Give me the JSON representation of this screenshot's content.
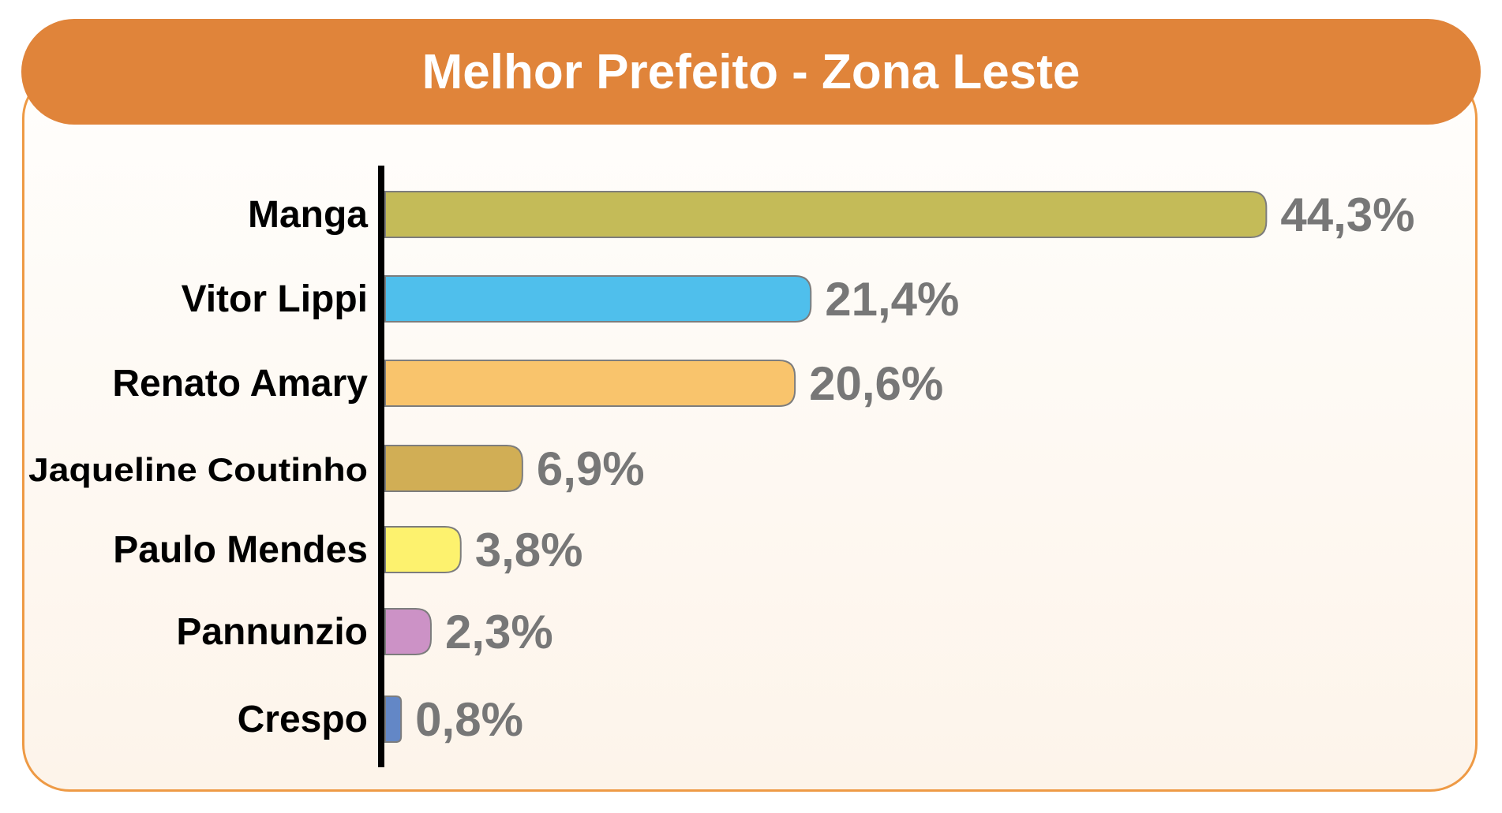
{
  "chart_data": {
    "type": "bar",
    "orientation": "horizontal",
    "title": "Melhor Prefeito - Zona Leste",
    "categories": [
      "Manga",
      "Vitor Lippi",
      "Renato Amary",
      "Jaqueline Coutinho",
      "Paulo Mendes",
      "Pannunzio",
      "Crespo"
    ],
    "values": [
      44.3,
      21.4,
      20.6,
      6.9,
      3.8,
      2.3,
      0.8
    ],
    "value_labels": [
      "44,3%",
      "21,4%",
      "20,6%",
      "6,9%",
      "3,8%",
      "2,3%",
      "0,8%"
    ],
    "colors": [
      "#c4bb58",
      "#4fbfec",
      "#f9c46c",
      "#d1ae55",
      "#fdf26e",
      "#cc92c6",
      "#6387c6"
    ],
    "xlabel": "",
    "ylabel": "",
    "grid": false,
    "legend": "none",
    "header_color": "#e0843a"
  }
}
